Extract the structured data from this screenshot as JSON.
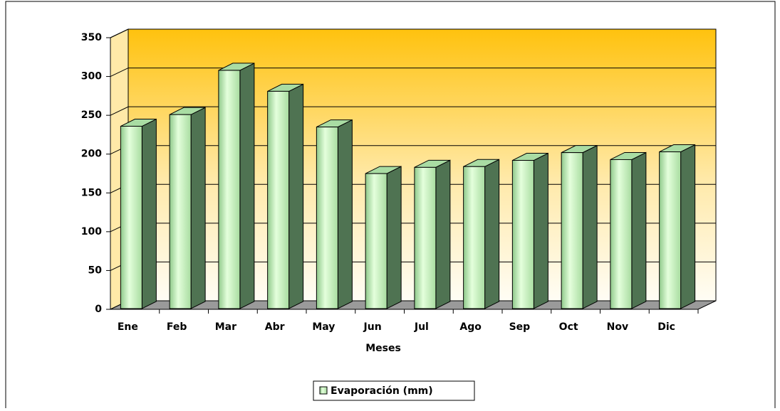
{
  "chart_data": {
    "type": "bar3d",
    "categories": [
      "Ene",
      "Feb",
      "Mar",
      "Abr",
      "May",
      "Jun",
      "Jul",
      "Ago",
      "Sep",
      "Oct",
      "Nov",
      "Dic"
    ],
    "series": [
      {
        "name": "Evaporación (mm)",
        "color": "#c8f5c0",
        "values": [
          235,
          250,
          307,
          280,
          234,
          174,
          182,
          183,
          191,
          201,
          192,
          202
        ]
      }
    ],
    "xlabel": "Meses",
    "ylim": [
      0,
      350
    ],
    "yticks": [
      0,
      50,
      100,
      150,
      200,
      250,
      300,
      350
    ],
    "grid": true,
    "legend": "bottom"
  }
}
